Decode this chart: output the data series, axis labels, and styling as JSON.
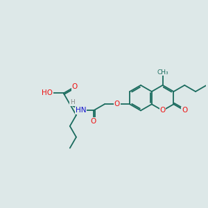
{
  "bg_color": "#dde8e8",
  "bond_color": "#1a6b5e",
  "bond_width": 1.3,
  "O_color": "#ee1111",
  "N_color": "#1111cc",
  "C_color": "#1a6b5e",
  "H_color": "#888888",
  "font_size_atom": 7.5,
  "figsize": [
    3.0,
    3.0
  ],
  "dpi": 100,
  "xlim": [
    0,
    10
  ],
  "ylim": [
    0,
    10
  ]
}
